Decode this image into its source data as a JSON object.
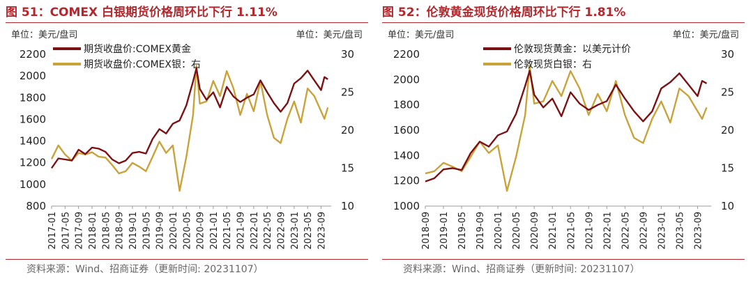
{
  "source_text": "资料来源：Wind、招商证券（更新时间: 20231107）",
  "chart_data": [
    {
      "type": "line",
      "title": "图 51：COMEX 白银期货价格周环比下行 1.11%",
      "unit_left": "单位：美元/盘司",
      "unit_right": "单位：美元/盘司",
      "legend": [
        "期货收盘价:COMEX黄金",
        "期货收盘价:COMEX银：右"
      ],
      "legend_placement": "top-left",
      "y_left": {
        "ticks": [
          800,
          1000,
          1200,
          1400,
          1600,
          1800,
          2000,
          2200
        ],
        "ylim": [
          800,
          2200
        ]
      },
      "y_right": {
        "ticks": [
          10,
          15,
          20,
          25,
          30
        ],
        "ylim": [
          10,
          30
        ]
      },
      "x_ticks": [
        "2017-01",
        "2017-05",
        "2017-09",
        "2018-01",
        "2018-05",
        "2018-09",
        "2019-01",
        "2019-05",
        "2019-09",
        "2020-01",
        "2020-05",
        "2020-09",
        "2021-01",
        "2021-05",
        "2021-09",
        "2022-01",
        "2022-05",
        "2022-09",
        "2023-01",
        "2023-05",
        "2023-09"
      ],
      "series": [
        {
          "name": "期货收盘价:COMEX黄金",
          "axis": "left",
          "color": "#7b1113",
          "points": [
            [
              "2017-01",
              1150
            ],
            [
              "2017-03",
              1240
            ],
            [
              "2017-05",
              1230
            ],
            [
              "2017-07",
              1220
            ],
            [
              "2017-09",
              1320
            ],
            [
              "2017-11",
              1280
            ],
            [
              "2018-01",
              1340
            ],
            [
              "2018-03",
              1330
            ],
            [
              "2018-05",
              1300
            ],
            [
              "2018-07",
              1230
            ],
            [
              "2018-09",
              1195
            ],
            [
              "2018-11",
              1220
            ],
            [
              "2019-01",
              1290
            ],
            [
              "2019-03",
              1300
            ],
            [
              "2019-05",
              1285
            ],
            [
              "2019-07",
              1420
            ],
            [
              "2019-09",
              1510
            ],
            [
              "2019-11",
              1470
            ],
            [
              "2020-01",
              1560
            ],
            [
              "2020-03",
              1590
            ],
            [
              "2020-05",
              1730
            ],
            [
              "2020-07",
              1950
            ],
            [
              "2020-08",
              2070
            ],
            [
              "2020-09",
              1880
            ],
            [
              "2020-11",
              1780
            ],
            [
              "2021-01",
              1850
            ],
            [
              "2021-03",
              1710
            ],
            [
              "2021-05",
              1900
            ],
            [
              "2021-07",
              1810
            ],
            [
              "2021-09",
              1760
            ],
            [
              "2021-11",
              1800
            ],
            [
              "2022-01",
              1830
            ],
            [
              "2022-03",
              1960
            ],
            [
              "2022-05",
              1850
            ],
            [
              "2022-07",
              1750
            ],
            [
              "2022-09",
              1670
            ],
            [
              "2022-11",
              1750
            ],
            [
              "2023-01",
              1930
            ],
            [
              "2023-03",
              1980
            ],
            [
              "2023-05",
              2050
            ],
            [
              "2023-07",
              1960
            ],
            [
              "2023-09",
              1870
            ],
            [
              "2023-10",
              1990
            ],
            [
              "2023-11",
              1970
            ]
          ]
        },
        {
          "name": "期货收盘价:COMEX银：右",
          "axis": "right",
          "color": "#c9a23a",
          "points": [
            [
              "2017-01",
              16.2
            ],
            [
              "2017-03",
              18
            ],
            [
              "2017-05",
              16.8
            ],
            [
              "2017-07",
              16
            ],
            [
              "2017-09",
              17
            ],
            [
              "2017-11",
              16.8
            ],
            [
              "2018-01",
              17.1
            ],
            [
              "2018-03",
              16.5
            ],
            [
              "2018-05",
              16.4
            ],
            [
              "2018-07",
              15.4
            ],
            [
              "2018-09",
              14.3
            ],
            [
              "2018-11",
              14.6
            ],
            [
              "2019-01",
              15.7
            ],
            [
              "2019-03",
              15.2
            ],
            [
              "2019-05",
              14.6
            ],
            [
              "2019-07",
              16.5
            ],
            [
              "2019-09",
              18.5
            ],
            [
              "2019-11",
              17
            ],
            [
              "2020-01",
              18
            ],
            [
              "2020-03",
              12
            ],
            [
              "2020-05",
              16.5
            ],
            [
              "2020-07",
              22
            ],
            [
              "2020-08",
              28.5
            ],
            [
              "2020-09",
              23.5
            ],
            [
              "2020-11",
              23.8
            ],
            [
              "2021-01",
              26.5
            ],
            [
              "2021-03",
              24.5
            ],
            [
              "2021-05",
              27.8
            ],
            [
              "2021-07",
              25.5
            ],
            [
              "2021-09",
              22
            ],
            [
              "2021-11",
              24.8
            ],
            [
              "2022-01",
              22.5
            ],
            [
              "2022-03",
              26.5
            ],
            [
              "2022-05",
              22
            ],
            [
              "2022-07",
              19
            ],
            [
              "2022-09",
              18.3
            ],
            [
              "2022-11",
              21.5
            ],
            [
              "2023-01",
              23.8
            ],
            [
              "2023-03",
              21
            ],
            [
              "2023-05",
              25.5
            ],
            [
              "2023-07",
              24.5
            ],
            [
              "2023-09",
              22.5
            ],
            [
              "2023-10",
              21.5
            ],
            [
              "2023-11",
              23
            ]
          ]
        }
      ]
    },
    {
      "type": "line",
      "title": "图 52：伦敦黄金现货价格周环比下行 1.81%",
      "unit_left": "单位：美元/盘司",
      "unit_right": "单位：美元/盘司",
      "legend": [
        "伦敦现货黄金：以美元计价",
        "伦敦现货白银：右"
      ],
      "legend_placement": "top-center",
      "y_left": {
        "ticks": [
          1000,
          1200,
          1400,
          1600,
          1800,
          2000,
          2200
        ],
        "ylim": [
          1000,
          2200
        ]
      },
      "y_right": {
        "ticks": [
          10,
          15,
          20,
          25,
          30
        ],
        "ylim": [
          10,
          30
        ]
      },
      "x_ticks": [
        "2018-09",
        "2019-01",
        "2019-05",
        "2019-09",
        "2020-01",
        "2020-05",
        "2020-09",
        "2021-01",
        "2021-05",
        "2021-09",
        "2022-01",
        "2022-05",
        "2022-09",
        "2023-01",
        "2023-05",
        "2023-09"
      ],
      "series": [
        {
          "name": "伦敦现货黄金：以美元计价",
          "axis": "left",
          "color": "#7b1113",
          "points": [
            [
              "2018-09",
              1195
            ],
            [
              "2018-11",
              1220
            ],
            [
              "2019-01",
              1290
            ],
            [
              "2019-03",
              1300
            ],
            [
              "2019-05",
              1285
            ],
            [
              "2019-07",
              1420
            ],
            [
              "2019-09",
              1510
            ],
            [
              "2019-11",
              1470
            ],
            [
              "2020-01",
              1560
            ],
            [
              "2020-03",
              1590
            ],
            [
              "2020-05",
              1730
            ],
            [
              "2020-07",
              1950
            ],
            [
              "2020-08",
              2070
            ],
            [
              "2020-09",
              1880
            ],
            [
              "2020-11",
              1780
            ],
            [
              "2021-01",
              1850
            ],
            [
              "2021-03",
              1710
            ],
            [
              "2021-05",
              1900
            ],
            [
              "2021-07",
              1810
            ],
            [
              "2021-09",
              1760
            ],
            [
              "2021-11",
              1800
            ],
            [
              "2022-01",
              1830
            ],
            [
              "2022-03",
              1960
            ],
            [
              "2022-05",
              1850
            ],
            [
              "2022-07",
              1750
            ],
            [
              "2022-09",
              1670
            ],
            [
              "2022-11",
              1750
            ],
            [
              "2023-01",
              1930
            ],
            [
              "2023-03",
              1980
            ],
            [
              "2023-05",
              2050
            ],
            [
              "2023-07",
              1960
            ],
            [
              "2023-09",
              1870
            ],
            [
              "2023-10",
              1990
            ],
            [
              "2023-11",
              1970
            ]
          ]
        },
        {
          "name": "伦敦现货白银：右",
          "axis": "right",
          "color": "#c9a23a",
          "points": [
            [
              "2018-09",
              14.3
            ],
            [
              "2018-11",
              14.6
            ],
            [
              "2019-01",
              15.7
            ],
            [
              "2019-03",
              15.2
            ],
            [
              "2019-05",
              14.6
            ],
            [
              "2019-07",
              16.5
            ],
            [
              "2019-09",
              18.5
            ],
            [
              "2019-11",
              17
            ],
            [
              "2020-01",
              18
            ],
            [
              "2020-03",
              12
            ],
            [
              "2020-05",
              16.5
            ],
            [
              "2020-07",
              22
            ],
            [
              "2020-08",
              28.5
            ],
            [
              "2020-09",
              23.5
            ],
            [
              "2020-11",
              23.8
            ],
            [
              "2021-01",
              26.5
            ],
            [
              "2021-03",
              24.5
            ],
            [
              "2021-05",
              27.8
            ],
            [
              "2021-07",
              25.5
            ],
            [
              "2021-09",
              22
            ],
            [
              "2021-11",
              24.8
            ],
            [
              "2022-01",
              22.5
            ],
            [
              "2022-03",
              26.5
            ],
            [
              "2022-05",
              22
            ],
            [
              "2022-07",
              19
            ],
            [
              "2022-09",
              18.3
            ],
            [
              "2022-11",
              21.5
            ],
            [
              "2023-01",
              23.8
            ],
            [
              "2023-03",
              21
            ],
            [
              "2023-05",
              25.5
            ],
            [
              "2023-07",
              24.5
            ],
            [
              "2023-09",
              22.5
            ],
            [
              "2023-10",
              21.5
            ],
            [
              "2023-11",
              23
            ]
          ]
        }
      ]
    }
  ]
}
